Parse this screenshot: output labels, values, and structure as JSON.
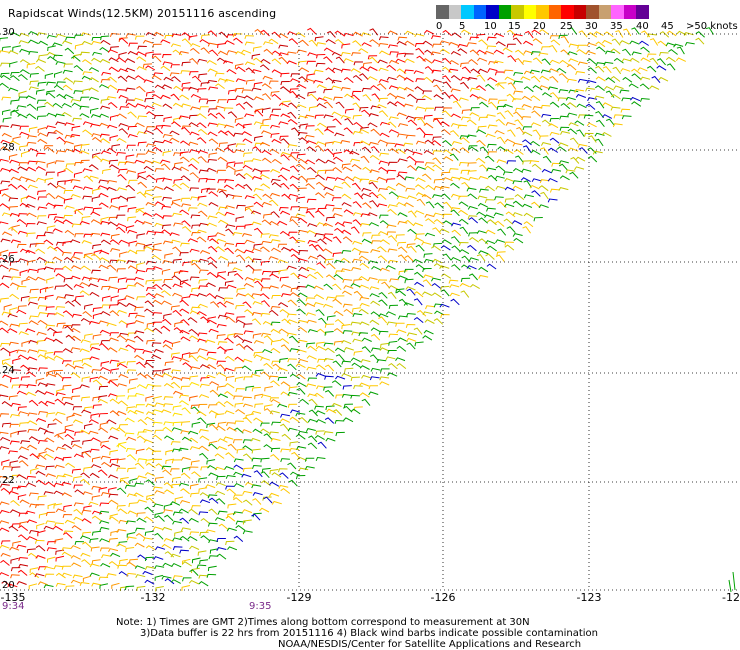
{
  "title": "Rapidscat Winds(12.5KM) 20151116 ascending",
  "legend": {
    "colors": [
      "#666666",
      "#c8c8c8",
      "#00c8ff",
      "#0064ff",
      "#0000c8",
      "#00a000",
      "#c8c800",
      "#ffff00",
      "#ffc800",
      "#ff6400",
      "#ff0000",
      "#c80000",
      "#a0522d",
      "#c8a070",
      "#ff64ff",
      "#c800c8",
      "#640096"
    ],
    "labels": [
      "0",
      "5",
      "10",
      "15",
      "20",
      "25",
      "30",
      "35",
      "40",
      "45",
      ">50 knots"
    ]
  },
  "lat_labels": [
    "30",
    "28",
    "26",
    "24",
    "22",
    "20"
  ],
  "lon_labels": [
    "-135",
    "-132",
    "-129",
    "-126",
    "-123",
    "-12"
  ],
  "times": [
    "9:34",
    "9:35"
  ],
  "notes": [
    "Note: 1) Times are GMT 2)Times along bottom correspond to measurement at 30N",
    "3)Data buffer is 22 hrs from 20151116 4) Black wind barbs indicate possible contamination",
    "NOAA/NESDIS/Center for Satellite Applications and Research"
  ]
}
